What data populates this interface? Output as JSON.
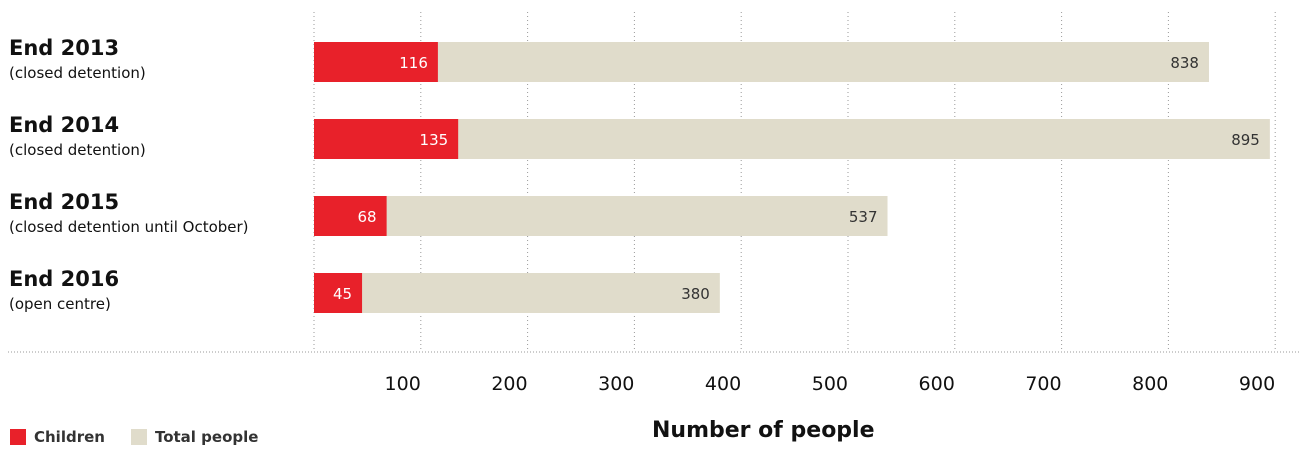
{
  "chart_data": {
    "type": "bar",
    "orientation": "horizontal",
    "categories": [
      {
        "title": "End 2013",
        "subtitle": "(closed detention)"
      },
      {
        "title": "End 2014",
        "subtitle": "(closed detention)"
      },
      {
        "title": "End 2015",
        "subtitle": "(closed detention until October)"
      },
      {
        "title": "End 2016",
        "subtitle": "(open centre)"
      }
    ],
    "series": [
      {
        "name": "Children",
        "values": [
          116,
          135,
          68,
          45
        ],
        "color": "#e8212a"
      },
      {
        "name": "Total people",
        "values": [
          838,
          895,
          537,
          380
        ],
        "color": "#e0dccb"
      }
    ],
    "xlabel": "Number of people",
    "xlim": [
      0,
      900
    ],
    "xticks": [
      100,
      200,
      300,
      400,
      500,
      600,
      700,
      800,
      900
    ],
    "grid": "vertical dotted",
    "legend_position": "bottom-left",
    "gridline_color": "#9a9a9a"
  },
  "legend": {
    "children_label": "Children",
    "total_label": "Total people"
  },
  "axis_title": "Number of people"
}
